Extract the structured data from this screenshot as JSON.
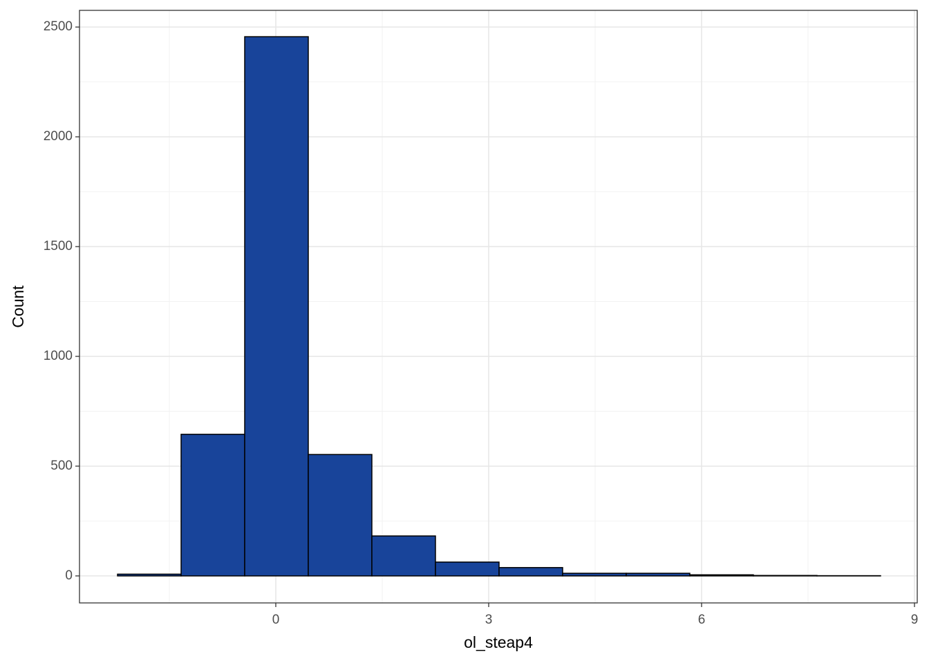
{
  "chart_data": {
    "type": "histogram",
    "x_label": "ol_steap4",
    "y_label": "Count",
    "bins": [
      -2.23,
      -1.334,
      -0.438,
      0.458,
      1.354,
      2.25,
      3.146,
      4.042,
      4.938,
      5.834,
      6.73,
      7.626,
      8.522
    ],
    "values": [
      8,
      645,
      2456,
      553,
      182,
      63,
      38,
      12,
      12,
      5,
      2,
      1
    ],
    "color": "#18449a",
    "xlim": [
      -2.766,
      9.039
    ],
    "xticks": [
      0,
      3,
      6,
      9
    ],
    "ylim": [
      -123,
      2576
    ],
    "yticks": [
      0,
      500,
      1000,
      1500,
      2000,
      2500
    ],
    "grid": true
  }
}
